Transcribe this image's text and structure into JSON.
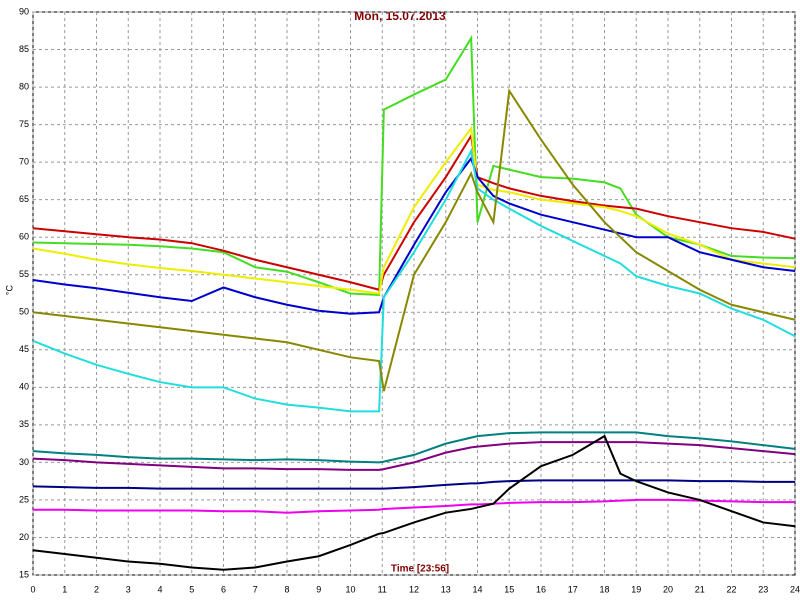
{
  "chart_data": {
    "type": "line",
    "title": "Mon, 15.07.2013",
    "xlabel": "Time [23:56]",
    "ylabel": "°C",
    "x": [
      0,
      1,
      2,
      3,
      4,
      5,
      6,
      7,
      8,
      9,
      10,
      10.9,
      11.05,
      12,
      13,
      13.8,
      14,
      14.5,
      15,
      16,
      17,
      18,
      18.5,
      19,
      20,
      21,
      22,
      23,
      24
    ],
    "series": [
      {
        "color": "#44dd22",
        "values": [
          59.3,
          59.2,
          59.1,
          59,
          58.8,
          58.5,
          58,
          56,
          55.4,
          54,
          52.5,
          52.3,
          77,
          79,
          81,
          86.5,
          62,
          69.5,
          69,
          68,
          67.8,
          67.3,
          66.5,
          63,
          60,
          59,
          57.5,
          57.3,
          57.2
        ]
      },
      {
        "color": "#cc0000",
        "values": [
          61.2,
          60.8,
          60.4,
          60,
          59.7,
          59.2,
          58.2,
          57,
          56,
          55,
          54,
          53,
          55,
          62,
          68,
          73.5,
          68,
          67.2,
          66.5,
          65.5,
          64.8,
          64.2,
          64,
          63.8,
          62.8,
          62,
          61.2,
          60.7,
          59.8
        ]
      },
      {
        "color": "#eeee00",
        "values": [
          58.5,
          57.8,
          57,
          56.4,
          55.9,
          55.5,
          55,
          54.5,
          54,
          53.5,
          53,
          52.5,
          56,
          64,
          70,
          74.5,
          67,
          66.3,
          66,
          65,
          64.5,
          64,
          63.5,
          62.8,
          60.5,
          59,
          57,
          56.5,
          56
        ]
      },
      {
        "color": "#0000cc",
        "values": [
          54.3,
          53.7,
          53.2,
          52.6,
          52,
          51.5,
          53.3,
          52,
          51,
          50.2,
          49.8,
          50,
          52,
          59,
          66,
          70.5,
          68,
          65.5,
          64.5,
          63,
          62,
          61,
          60.5,
          60,
          60,
          58,
          57,
          56,
          55.5
        ]
      },
      {
        "color": "#22dddd",
        "values": [
          46.2,
          44.5,
          43,
          41.8,
          40.7,
          40,
          40,
          38.5,
          37.7,
          37.3,
          36.8,
          36.8,
          52,
          58,
          65,
          71.5,
          66.5,
          65,
          63.8,
          61.5,
          59.5,
          57.5,
          56.5,
          54.8,
          53.5,
          52.5,
          50.5,
          49,
          46.8
        ]
      },
      {
        "color": "#888800",
        "values": [
          50,
          49.5,
          49,
          48.5,
          48,
          47.5,
          47,
          46.5,
          46,
          45,
          44,
          43.5,
          39.5,
          55,
          62,
          68.5,
          66,
          62,
          79.5,
          73,
          67,
          62,
          60,
          58,
          55.5,
          53,
          51,
          50,
          49
        ]
      },
      {
        "color": "#008080",
        "values": [
          31.5,
          31.2,
          31,
          30.7,
          30.5,
          30.5,
          30.4,
          30.3,
          30.4,
          30.3,
          30.1,
          30,
          30.1,
          31,
          32.5,
          33.3,
          33.5,
          33.7,
          33.9,
          34,
          34,
          34,
          34,
          34,
          33.5,
          33.2,
          32.8,
          32.3,
          31.8
        ]
      },
      {
        "color": "#800080",
        "values": [
          30.5,
          30.3,
          30,
          29.8,
          29.6,
          29.4,
          29.2,
          29.2,
          29.1,
          29.1,
          29,
          29,
          29.1,
          30,
          31.3,
          32,
          32.1,
          32.3,
          32.5,
          32.7,
          32.7,
          32.7,
          32.7,
          32.7,
          32.5,
          32.3,
          31.9,
          31.5,
          31.1
        ]
      },
      {
        "color": "#000080",
        "values": [
          26.8,
          26.7,
          26.6,
          26.6,
          26.5,
          26.5,
          26.5,
          26.5,
          26.5,
          26.5,
          26.5,
          26.5,
          26.5,
          26.7,
          27,
          27.2,
          27.2,
          27.4,
          27.5,
          27.6,
          27.6,
          27.6,
          27.6,
          27.6,
          27.6,
          27.5,
          27.5,
          27.4,
          27.4
        ]
      },
      {
        "color": "#ee00ee",
        "values": [
          23.7,
          23.7,
          23.6,
          23.6,
          23.6,
          23.6,
          23.5,
          23.5,
          23.3,
          23.5,
          23.6,
          23.7,
          23.8,
          24,
          24.2,
          24.4,
          24.4,
          24.5,
          24.6,
          24.7,
          24.7,
          24.8,
          24.9,
          25,
          25,
          24.9,
          24.8,
          24.7,
          24.7
        ]
      },
      {
        "color": "#000000",
        "values": [
          18.3,
          17.8,
          17.3,
          16.8,
          16.5,
          16,
          15.7,
          16,
          16.8,
          17.5,
          19,
          20.5,
          20.6,
          22,
          23.3,
          23.8,
          24,
          24.5,
          26.5,
          29.5,
          31,
          33.5,
          28.5,
          27.5,
          26,
          25,
          23.5,
          22,
          21.5
        ]
      }
    ],
    "xlim": [
      0,
      24
    ],
    "xticks": [
      0,
      1,
      2,
      3,
      4,
      5,
      6,
      7,
      8,
      9,
      10,
      11,
      12,
      13,
      14,
      15,
      16,
      17,
      18,
      19,
      20,
      21,
      22,
      23,
      24
    ],
    "ylim": [
      15,
      90
    ],
    "yticks": [
      15,
      20,
      25,
      30,
      35,
      40,
      45,
      50,
      55,
      60,
      65,
      70,
      75,
      80,
      85,
      90
    ],
    "grid": true
  }
}
